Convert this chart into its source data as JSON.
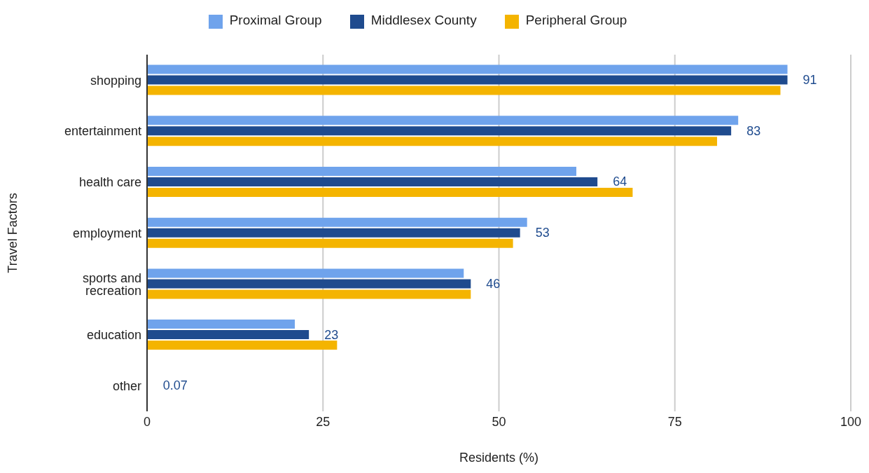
{
  "chart_data": {
    "type": "bar",
    "orientation": "horizontal",
    "xlabel": "Residents (%)",
    "ylabel": "Travel Factors",
    "categories": [
      "shopping",
      "entertainment",
      "health care",
      "employment",
      "sports and recreation",
      "education",
      "other"
    ],
    "series": [
      {
        "name": "Proximal Group",
        "color": "#6fa3ec",
        "values": [
          91,
          84,
          61,
          54,
          45,
          21,
          0
        ]
      },
      {
        "name": "Middlesex County",
        "color": "#1f4b8e",
        "values": [
          91,
          83,
          64,
          53,
          46,
          23,
          0.07
        ],
        "value_labels": [
          "91",
          "83",
          "64",
          "53",
          "46",
          "23",
          "0.07"
        ]
      },
      {
        "name": "Peripheral Group",
        "color": "#f4b400",
        "values": [
          90,
          81,
          69,
          52,
          46,
          27,
          0
        ]
      }
    ],
    "xlim": [
      0,
      100
    ],
    "xticks": [
      0,
      25,
      50,
      75,
      100
    ],
    "grid": "x",
    "legend": "top"
  }
}
